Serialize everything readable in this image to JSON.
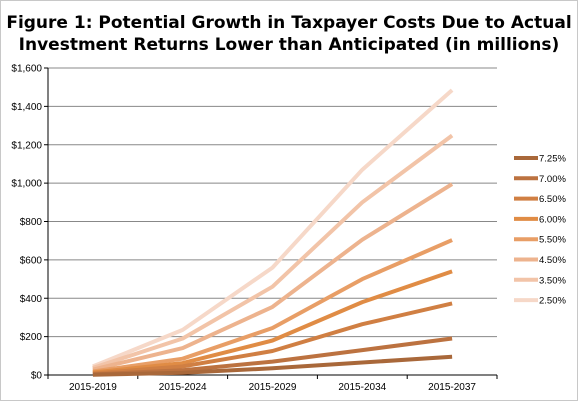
{
  "chart_data": {
    "type": "line",
    "title_line1": "Figure 1: Potential Growth in Taxpayer Costs Due to Actual",
    "title_line2": "Investment Returns Lower than Anticipated (in millions)",
    "categories": [
      "2015-2019",
      "2015-2024",
      "2015-2029",
      "2015-2034",
      "2015-2037"
    ],
    "ylim": [
      0,
      1600
    ],
    "yticks": [
      0,
      200,
      400,
      600,
      800,
      1000,
      1200,
      1400,
      1600
    ],
    "ytick_labels": [
      "$0",
      "$200",
      "$400",
      "$600",
      "$800",
      "$1,000",
      "$1,200",
      "$1,400",
      "$1,600"
    ],
    "grid": true,
    "legend_position": "right",
    "series": [
      {
        "name": "7.25%",
        "color": "#a9683a",
        "values": [
          1,
          12,
          35,
          65,
          95
        ]
      },
      {
        "name": "7.00%",
        "color": "#bc7240",
        "values": [
          3,
          25,
          70,
          130,
          190
        ]
      },
      {
        "name": "6.50%",
        "color": "#d07f43",
        "values": [
          8,
          45,
          125,
          265,
          373
        ]
      },
      {
        "name": "6.00%",
        "color": "#e08c45",
        "values": [
          13,
          62,
          180,
          380,
          540
        ]
      },
      {
        "name": "5.50%",
        "color": "#e89e66",
        "values": [
          18,
          85,
          245,
          500,
          703
        ]
      },
      {
        "name": "4.50%",
        "color": "#edb38e",
        "values": [
          28,
          140,
          355,
          705,
          995
        ]
      },
      {
        "name": "3.50%",
        "color": "#f2c4a8",
        "values": [
          37,
          190,
          460,
          900,
          1248
        ]
      },
      {
        "name": "2.50%",
        "color": "#f6d8c8",
        "values": [
          45,
          235,
          560,
          1070,
          1485
        ]
      }
    ]
  }
}
